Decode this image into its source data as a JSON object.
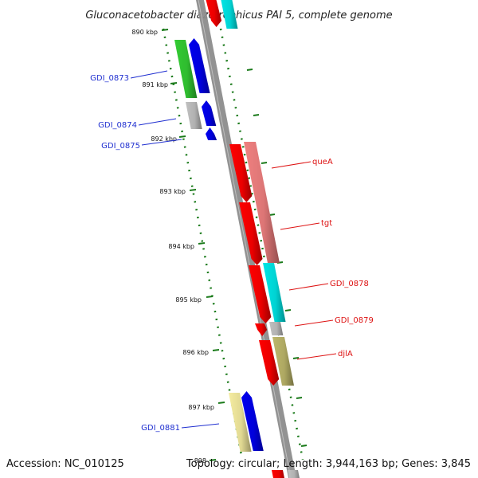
{
  "title": "Gluconacetobacter diazotrophicus PAI 5, complete genome",
  "footer": {
    "accession": "Accession: NC_010125",
    "topology": "Topology: circular; Length: 3,944,163 bp; Genes: 3,845"
  },
  "ruler_labels": [
    "890 kbp",
    "891 kbp",
    "892 kbp",
    "893 kbp",
    "894 kbp",
    "895 kbp",
    "896 kbp",
    "897 kbp",
    "898"
  ],
  "colors": {
    "backbone": "#8c8c8c",
    "tick": "#1a7a1a",
    "forward_label": "#dd1111",
    "reverse_label": "#1f2fd0",
    "cds_forward": "#ff0000",
    "cds_reverse": "#0000ee",
    "green": "#33cc33",
    "grey": "#c0c0c0",
    "pink": "#f08080",
    "cyan": "#00e5e5",
    "olive": "#bdb76b",
    "yellow": "#f5eca0"
  },
  "gene_labels": {
    "reverse": [
      "GDI_0873",
      "GDI_0874",
      "GDI_0875",
      "GDI_0881"
    ],
    "forward": [
      "queA",
      "tgt",
      "GDI_0878",
      "GDI_0879",
      "djlA"
    ]
  }
}
